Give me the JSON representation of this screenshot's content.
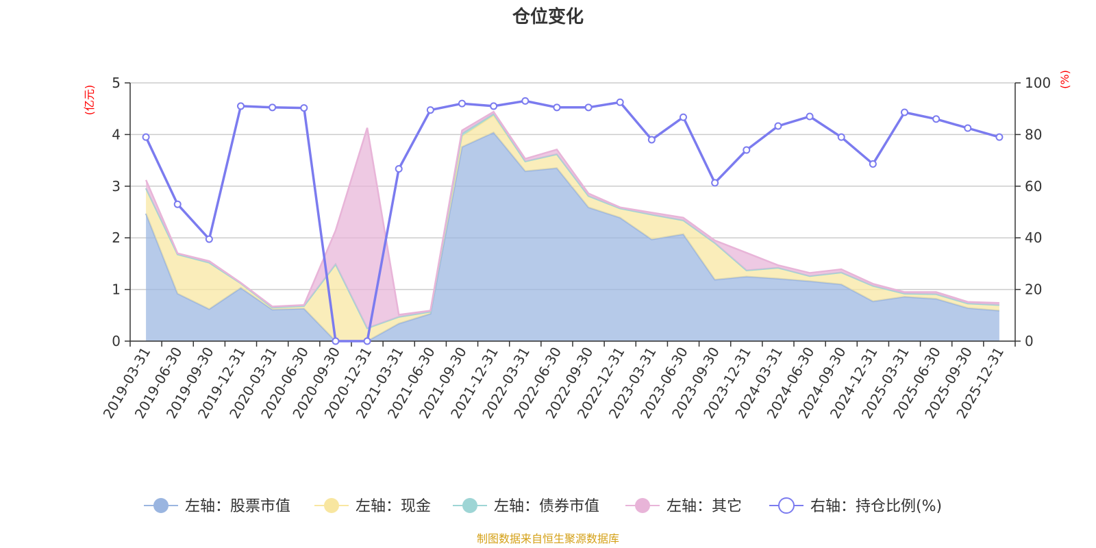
{
  "chart_data": {
    "type": "area",
    "title": "仓位变化",
    "left_axis_unit": "(亿元)",
    "right_axis_unit": "(%)",
    "left_ylim": [
      0,
      5
    ],
    "left_ticks": [
      "0",
      "1",
      "2",
      "3",
      "4",
      "5"
    ],
    "right_ylim": [
      0,
      100
    ],
    "right_ticks": [
      "0",
      "20",
      "40",
      "60",
      "80",
      "100"
    ],
    "categories": [
      "2019-03-31",
      "2019-06-30",
      "2019-09-30",
      "2019-12-31",
      "2020-03-31",
      "2020-06-30",
      "2020-09-30",
      "2020-12-31",
      "2021-03-31",
      "2021-06-30",
      "2021-09-30",
      "2021-12-31",
      "2022-03-31",
      "2022-06-30",
      "2022-09-30",
      "2022-12-31",
      "2023-03-31",
      "2023-06-30",
      "2023-09-30",
      "2023-12-31",
      "2024-03-31",
      "2024-06-30",
      "2024-09-30",
      "2024-12-31",
      "2025-03-31",
      "2025-06-30",
      "2025-09-30",
      "2025-12-31"
    ],
    "grid": true,
    "legend_position": "bottom",
    "series": [
      {
        "name": "左轴：股票市值",
        "axis": "left",
        "stacked": true,
        "color": "#9ab5e0",
        "values": [
          2.47,
          0.92,
          0.62,
          1.03,
          0.61,
          0.63,
          0.0,
          0.0,
          0.34,
          0.53,
          3.76,
          4.04,
          3.29,
          3.35,
          2.59,
          2.39,
          1.97,
          2.07,
          1.19,
          1.25,
          1.21,
          1.16,
          1.1,
          0.77,
          0.86,
          0.82,
          0.64,
          0.59
        ]
      },
      {
        "name": "左轴：现金",
        "axis": "left",
        "stacked": true,
        "color": "#f8e6a0",
        "values": [
          0.49,
          0.76,
          0.9,
          0.09,
          0.04,
          0.05,
          1.49,
          0.25,
          0.13,
          0.04,
          0.21,
          0.33,
          0.19,
          0.27,
          0.22,
          0.18,
          0.48,
          0.27,
          0.71,
          0.12,
          0.21,
          0.1,
          0.23,
          0.3,
          0.06,
          0.09,
          0.09,
          0.11
        ]
      },
      {
        "name": "左轴：债券市值",
        "axis": "left",
        "stacked": true,
        "color": "#9ed5d5",
        "values": [
          0,
          0,
          0,
          0,
          0,
          0,
          0,
          0,
          0,
          0,
          0.05,
          0.03,
          0,
          0,
          0,
          0,
          0,
          0,
          0,
          0,
          0,
          0,
          0,
          0,
          0,
          0,
          0,
          0
        ]
      },
      {
        "name": "左轴：其它",
        "axis": "left",
        "stacked": true,
        "color": "#e8b4d8",
        "values": [
          0.16,
          0.02,
          0.03,
          0.01,
          0.02,
          0.02,
          0.65,
          3.88,
          0.04,
          0.02,
          0.06,
          0.04,
          0.05,
          0.09,
          0.05,
          0.02,
          0.04,
          0.05,
          0.05,
          0.34,
          0.05,
          0.06,
          0.06,
          0.04,
          0.03,
          0.04,
          0.03,
          0.04
        ]
      },
      {
        "name": "右轴：持仓比例(%)",
        "axis": "right",
        "type": "line",
        "color": "#7b7bef",
        "values": [
          79,
          53,
          39.5,
          91,
          90.5,
          90.3,
          0,
          0,
          66.7,
          89.5,
          92,
          91,
          93,
          90.5,
          90.5,
          92.5,
          78,
          86.7,
          61.3,
          74,
          83.3,
          87,
          79,
          68.6,
          88.6,
          86,
          82.5,
          79
        ]
      }
    ]
  },
  "legend": {
    "items": [
      {
        "label": "左轴：股票市值",
        "fill": "#9ab5e0",
        "stroke": "#9ab5e0",
        "hollow": false
      },
      {
        "label": "左轴：现金",
        "fill": "#f8e6a0",
        "stroke": "#f8e6a0",
        "hollow": false
      },
      {
        "label": "左轴：债券市值",
        "fill": "#9ed5d5",
        "stroke": "#9ed5d5",
        "hollow": false
      },
      {
        "label": "左轴：其它",
        "fill": "#e8b4d8",
        "stroke": "#e8b4d8",
        "hollow": false
      },
      {
        "label": "右轴：持仓比例(%)",
        "fill": "#ffffff",
        "stroke": "#7b7bef",
        "hollow": true
      }
    ]
  },
  "source": "制图数据来自恒生聚源数据库"
}
